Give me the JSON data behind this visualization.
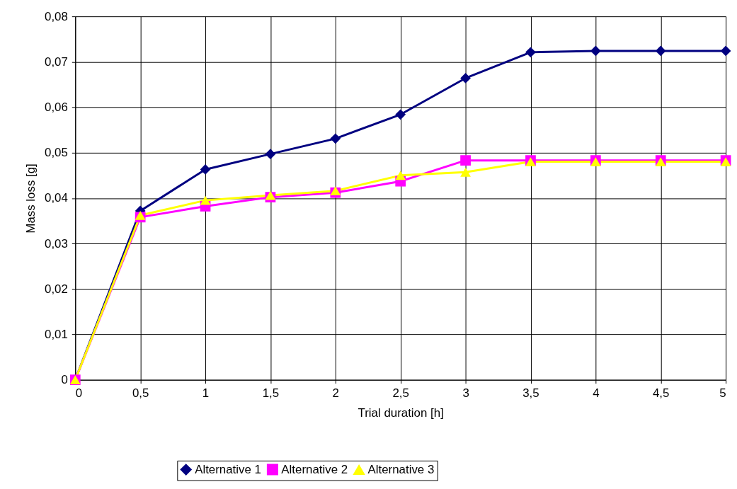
{
  "chart_data": {
    "type": "line",
    "xlabel": "Trial duration [h]",
    "ylabel": "Mass loss [g]",
    "x": [
      0,
      0.5,
      1,
      1.5,
      2,
      2.5,
      3,
      3.5,
      4,
      4.5,
      5
    ],
    "series": [
      {
        "name": "Alternative 1",
        "color": "#000080",
        "marker": "diamond",
        "values": [
          0,
          0.0372,
          0.0463,
          0.0497,
          0.0531,
          0.0584,
          0.0664,
          0.0721,
          0.0724,
          0.0724,
          0.0724
        ]
      },
      {
        "name": "Alternative 2",
        "color": "#ff00ff",
        "marker": "square",
        "values": [
          0,
          0.0358,
          0.0382,
          0.0402,
          0.0412,
          0.0437,
          0.0483,
          0.0483,
          0.0483,
          0.0483,
          0.0483
        ]
      },
      {
        "name": "Alternative 3",
        "color": "#ffff00",
        "marker": "triangle",
        "values": [
          0,
          0.0362,
          0.0395,
          0.0406,
          0.0416,
          0.045,
          0.0457,
          0.048,
          0.048,
          0.048,
          0.048
        ]
      }
    ],
    "xlim": [
      0,
      5
    ],
    "xticks": [
      0,
      {
        "value": 0.5,
        "label": "0,5"
      },
      1,
      {
        "value": 1.5,
        "label": "1,5"
      },
      2,
      {
        "value": 2.5,
        "label": "2,5"
      },
      3,
      {
        "value": 3.5,
        "label": "3,5"
      },
      4,
      {
        "value": 4.5,
        "label": "4,5"
      },
      5
    ],
    "ylim": [
      0,
      0.08
    ],
    "yticks": [
      0,
      {
        "value": 0.01,
        "label": "0,01"
      },
      {
        "value": 0.02,
        "label": "0,02"
      },
      {
        "value": 0.03,
        "label": "0,03"
      },
      {
        "value": 0.04,
        "label": "0,04"
      },
      {
        "value": 0.05,
        "label": "0,05"
      },
      {
        "value": 0.06,
        "label": "0,06"
      },
      {
        "value": 0.07,
        "label": "0,07"
      },
      {
        "value": 0.08,
        "label": "0,08"
      }
    ],
    "grid": true,
    "legend": "bottom",
    "line_style": "solid"
  }
}
